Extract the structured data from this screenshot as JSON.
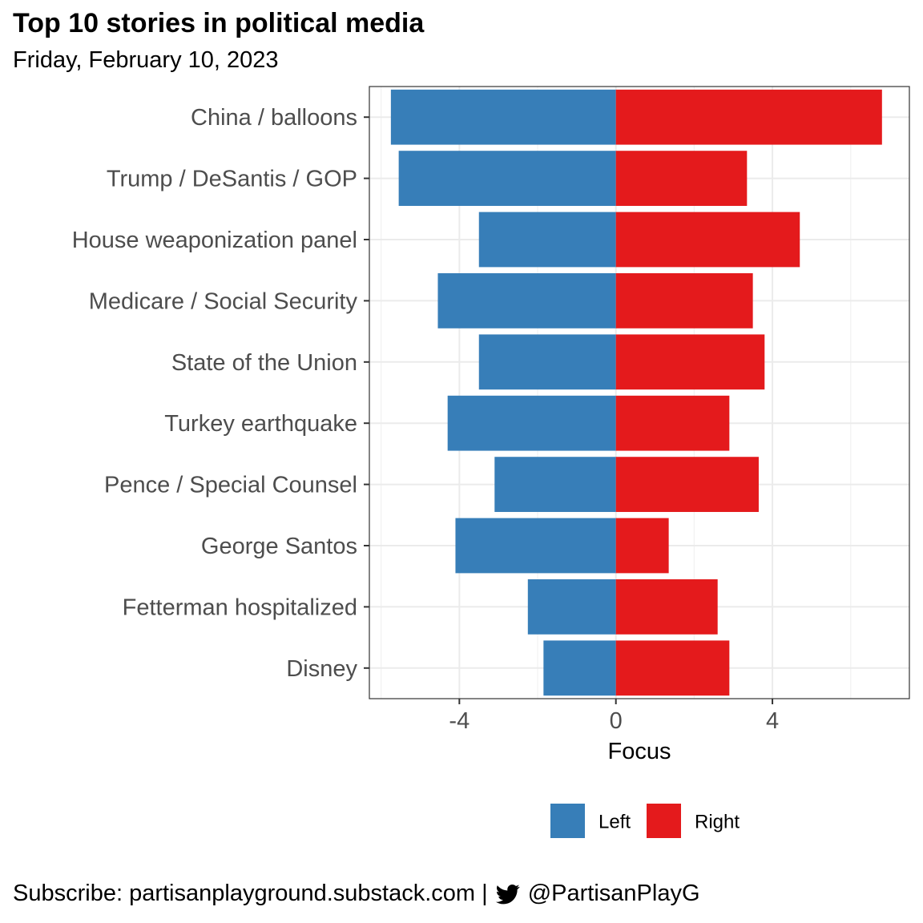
{
  "chart_data": {
    "type": "bar",
    "orientation": "horizontal",
    "title": "Top 10 stories in political media",
    "subtitle": "Friday, February 10, 2023",
    "xlabel": "Focus",
    "ylabel": "",
    "xlim": [
      -6.3,
      7.5
    ],
    "xticks": [
      -4,
      0,
      4
    ],
    "xtick_labels": [
      "-4",
      "0",
      "4"
    ],
    "grid": true,
    "legend_position": "bottom",
    "categories": [
      "China / balloons",
      "Trump / DeSantis / GOP",
      "House weaponization panel",
      "Medicare / Social Security",
      "State of the Union",
      "Turkey earthquake",
      "Pence / Special Counsel",
      "George Santos",
      "Fetterman hospitalized",
      "Disney"
    ],
    "series": [
      {
        "name": "Left",
        "color": "#377eb8",
        "values": [
          -5.75,
          -5.55,
          -3.5,
          -4.55,
          -3.5,
          -4.3,
          -3.1,
          -4.1,
          -2.25,
          -1.85
        ]
      },
      {
        "name": "Right",
        "color": "#e41a1c",
        "values": [
          6.8,
          3.35,
          4.7,
          3.5,
          3.8,
          2.9,
          3.65,
          1.35,
          2.6,
          2.9
        ]
      }
    ]
  },
  "footer": {
    "icon": "twitter-bird-icon",
    "text_before": "Subscribe: partisanplayground.substack.com | ",
    "text_after": "@PartisanPlayG"
  }
}
